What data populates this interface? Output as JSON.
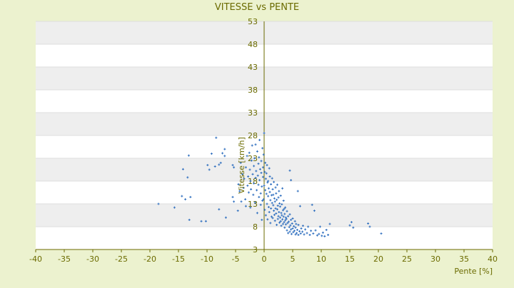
{
  "chart_data": {
    "type": "scatter",
    "title": "VITESSE vs PENTE",
    "xlabel": "Pente [%]",
    "ylabel": "Vitesse [km/h]",
    "xlim": [
      -40,
      40
    ],
    "ylim": [
      3,
      53
    ],
    "x_ticks": [
      -40,
      -35,
      -30,
      -25,
      -20,
      -15,
      -10,
      -5,
      0,
      5,
      10,
      15,
      20,
      25,
      30,
      35,
      40
    ],
    "y_ticks": [
      3,
      8,
      13,
      18,
      23,
      28,
      33,
      38,
      43,
      48,
      53
    ],
    "grid": "horizontal alternating bands",
    "legend": "none",
    "colors": {
      "background": "#ecf2cf",
      "plot_band_light": "#ffffff",
      "plot_band_dark": "#eeeeee",
      "axis_text": "#6b6b00",
      "zero_axis": "#6b6b00",
      "points": "#2f6fbf"
    },
    "points": [
      [
        -18.5,
        13.0
      ],
      [
        -15.7,
        12.2
      ],
      [
        -14.4,
        14.7
      ],
      [
        -14.2,
        20.6
      ],
      [
        -13.8,
        14.0
      ],
      [
        -13.4,
        18.8
      ],
      [
        -13.1,
        9.5
      ],
      [
        -12.9,
        14.5
      ],
      [
        -13.2,
        23.6
      ],
      [
        -11.0,
        9.2
      ],
      [
        -10.2,
        9.2
      ],
      [
        -9.9,
        21.5
      ],
      [
        -9.6,
        20.5
      ],
      [
        -9.2,
        24.0
      ],
      [
        -8.6,
        21.2
      ],
      [
        -8.4,
        27.5
      ],
      [
        -7.9,
        21.6
      ],
      [
        -7.9,
        11.8
      ],
      [
        -7.6,
        22.0
      ],
      [
        -7.3,
        24.1
      ],
      [
        -6.9,
        23.5
      ],
      [
        -6.9,
        25.0
      ],
      [
        -6.7,
        10.0
      ],
      [
        -5.5,
        14.5
      ],
      [
        -5.5,
        21.5
      ],
      [
        -5.3,
        13.5
      ],
      [
        -5.3,
        21.0
      ],
      [
        -4.6,
        11.5
      ],
      [
        -4.5,
        17.3
      ],
      [
        -4.3,
        15.8
      ],
      [
        -4.1,
        22.0
      ],
      [
        -4.0,
        13.5
      ],
      [
        -3.8,
        19.5
      ],
      [
        -3.6,
        16.5
      ],
      [
        -3.5,
        18.5
      ],
      [
        -3.3,
        14.0
      ],
      [
        -3.2,
        12.5
      ],
      [
        -3.2,
        21.0
      ],
      [
        -3.0,
        23.5
      ],
      [
        -2.9,
        17.0
      ],
      [
        -2.8,
        19.0
      ],
      [
        -2.7,
        15.5
      ],
      [
        -2.6,
        24.2
      ],
      [
        -2.5,
        20.5
      ],
      [
        -2.4,
        18.0
      ],
      [
        -2.4,
        12.2
      ],
      [
        -2.3,
        16.2
      ],
      [
        -2.2,
        22.5
      ],
      [
        -2.1,
        25.8
      ],
      [
        -2.0,
        19.5
      ],
      [
        -1.9,
        15.0
      ],
      [
        -1.8,
        21.3
      ],
      [
        -1.8,
        17.5
      ],
      [
        -1.7,
        23.0
      ],
      [
        -1.6,
        13.3
      ],
      [
        -1.5,
        18.7
      ],
      [
        -1.5,
        26.0
      ],
      [
        -1.4,
        20.2
      ],
      [
        -1.3,
        16.0
      ],
      [
        -1.2,
        24.5
      ],
      [
        -1.2,
        11.0
      ],
      [
        -1.1,
        19.2
      ],
      [
        -1.0,
        21.8
      ],
      [
        -1.0,
        17.2
      ],
      [
        -0.9,
        14.5
      ],
      [
        -0.9,
        23.2
      ],
      [
        -0.8,
        27.0
      ],
      [
        -0.8,
        18.2
      ],
      [
        -0.7,
        20.6
      ],
      [
        -0.6,
        15.3
      ],
      [
        -0.6,
        12.8
      ],
      [
        -0.5,
        22.4
      ],
      [
        -0.5,
        19.8
      ],
      [
        -0.4,
        9.5
      ],
      [
        -0.4,
        16.8
      ],
      [
        -0.3,
        25.2
      ],
      [
        -0.3,
        13.7
      ],
      [
        -0.2,
        18.9
      ],
      [
        -0.2,
        21.0
      ],
      [
        -0.1,
        23.8
      ],
      [
        -0.1,
        14.0
      ],
      [
        0.0,
        28.5
      ],
      [
        0.0,
        17.0
      ],
      [
        0.1,
        20.0
      ],
      [
        0.1,
        11.7
      ],
      [
        0.2,
        16.0
      ],
      [
        0.2,
        22.0
      ],
      [
        0.3,
        18.5
      ],
      [
        0.3,
        10.5
      ],
      [
        0.4,
        15.2
      ],
      [
        0.4,
        19.7
      ],
      [
        0.5,
        13.0
      ],
      [
        0.5,
        21.5
      ],
      [
        0.6,
        17.7
      ],
      [
        0.6,
        9.6
      ],
      [
        0.7,
        14.7
      ],
      [
        0.7,
        18.0
      ],
      [
        0.8,
        12.3
      ],
      [
        0.8,
        16.4
      ],
      [
        0.9,
        20.8
      ],
      [
        0.9,
        11.2
      ],
      [
        1.0,
        15.6
      ],
      [
        1.0,
        19.0
      ],
      [
        1.1,
        13.8
      ],
      [
        1.1,
        8.8
      ],
      [
        1.2,
        17.3
      ],
      [
        1.2,
        12.0
      ],
      [
        1.3,
        14.9
      ],
      [
        1.3,
        10.2
      ],
      [
        1.4,
        18.6
      ],
      [
        1.4,
        13.2
      ],
      [
        1.5,
        16.2
      ],
      [
        1.5,
        9.9
      ],
      [
        1.6,
        12.7
      ],
      [
        1.6,
        15.0
      ],
      [
        1.7,
        11.5
      ],
      [
        1.7,
        17.8
      ],
      [
        1.8,
        10.6
      ],
      [
        1.8,
        14.2
      ],
      [
        1.9,
        13.5
      ],
      [
        1.9,
        9.3
      ],
      [
        2.0,
        16.6
      ],
      [
        2.0,
        12.0
      ],
      [
        2.1,
        10.9
      ],
      [
        2.1,
        15.3
      ],
      [
        2.2,
        13.9
      ],
      [
        2.2,
        8.4
      ],
      [
        2.3,
        11.8
      ],
      [
        2.3,
        17.2
      ],
      [
        2.4,
        12.6
      ],
      [
        2.4,
        9.7
      ],
      [
        2.5,
        14.4
      ],
      [
        2.5,
        10.3
      ],
      [
        2.6,
        11.2
      ],
      [
        2.6,
        15.8
      ],
      [
        2.7,
        8.9
      ],
      [
        2.7,
        13.1
      ],
      [
        2.8,
        10.0
      ],
      [
        2.8,
        12.4
      ],
      [
        2.9,
        9.2
      ],
      [
        2.9,
        14.8
      ],
      [
        3.0,
        11.0
      ],
      [
        3.0,
        8.2
      ],
      [
        3.1,
        12.9
      ],
      [
        3.1,
        10.5
      ],
      [
        3.2,
        9.6
      ],
      [
        3.2,
        16.4
      ],
      [
        3.3,
        11.6
      ],
      [
        3.3,
        8.6
      ],
      [
        3.4,
        10.2
      ],
      [
        3.4,
        13.7
      ],
      [
        3.5,
        9.0
      ],
      [
        3.5,
        11.9
      ],
      [
        3.6,
        7.8
      ],
      [
        3.6,
        10.8
      ],
      [
        3.7,
        9.4
      ],
      [
        3.7,
        12.2
      ],
      [
        3.8,
        8.5
      ],
      [
        3.8,
        10.0
      ],
      [
        3.9,
        9.7
      ],
      [
        4.0,
        7.2
      ],
      [
        4.0,
        11.4
      ],
      [
        4.1,
        8.8
      ],
      [
        4.2,
        10.3
      ],
      [
        4.2,
        6.6
      ],
      [
        4.3,
        9.1
      ],
      [
        4.4,
        7.9
      ],
      [
        4.5,
        10.7
      ],
      [
        4.5,
        6.9
      ],
      [
        4.6,
        8.3
      ],
      [
        4.7,
        9.5
      ],
      [
        4.7,
        7.4
      ],
      [
        4.8,
        6.4
      ],
      [
        4.9,
        8.7
      ],
      [
        5.0,
        7.6
      ],
      [
        5.0,
        9.8
      ],
      [
        5.1,
        6.8
      ],
      [
        5.2,
        8.1
      ],
      [
        5.3,
        7.1
      ],
      [
        5.4,
        9.2
      ],
      [
        5.5,
        6.3
      ],
      [
        5.5,
        7.8
      ],
      [
        5.6,
        8.6
      ],
      [
        5.7,
        6.6
      ],
      [
        5.8,
        7.3
      ],
      [
        5.9,
        15.8
      ],
      [
        6.0,
        6.2
      ],
      [
        6.0,
        8.4
      ],
      [
        6.2,
        7.0
      ],
      [
        6.3,
        12.5
      ],
      [
        6.4,
        6.5
      ],
      [
        6.5,
        7.6
      ],
      [
        6.7,
        6.9
      ],
      [
        6.8,
        8.2
      ],
      [
        7.0,
        6.3
      ],
      [
        7.2,
        7.4
      ],
      [
        7.5,
        6.6
      ],
      [
        7.7,
        8.0
      ],
      [
        8.0,
        6.2
      ],
      [
        8.2,
        7.1
      ],
      [
        8.4,
        12.8
      ],
      [
        8.6,
        6.5
      ],
      [
        8.8,
        11.5
      ],
      [
        9.0,
        7.2
      ],
      [
        9.3,
        6.1
      ],
      [
        9.6,
        6.4
      ],
      [
        9.8,
        8.0
      ],
      [
        10.1,
        6.0
      ],
      [
        10.3,
        6.7
      ],
      [
        10.6,
        5.9
      ],
      [
        10.9,
        7.3
      ],
      [
        11.2,
        6.2
      ],
      [
        11.5,
        8.6
      ],
      [
        15.0,
        8.3
      ],
      [
        15.3,
        9.0
      ],
      [
        15.6,
        7.8
      ],
      [
        18.2,
        8.7
      ],
      [
        18.5,
        8.0
      ],
      [
        20.5,
        6.5
      ],
      [
        4.7,
        18.2
      ],
      [
        4.5,
        20.3
      ]
    ]
  }
}
